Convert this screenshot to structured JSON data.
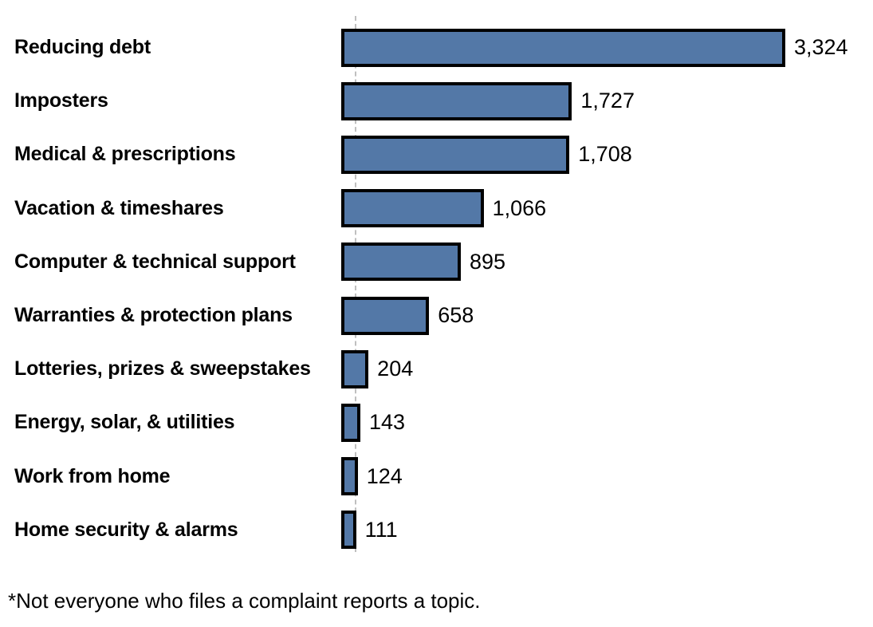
{
  "chart_data": {
    "type": "bar",
    "orientation": "horizontal",
    "title": "",
    "xlabel": "",
    "ylabel": "",
    "categories": [
      "Reducing debt",
      "Imposters",
      "Medical & prescriptions",
      "Vacation & timeshares",
      "Computer & technical support",
      "Warranties & protection plans",
      "Lotteries, prizes & sweepstakes",
      "Energy, solar, & utilities",
      "Work from home",
      "Home security & alarms"
    ],
    "values": [
      3324,
      1727,
      1708,
      1066,
      895,
      658,
      204,
      143,
      124,
      111
    ],
    "value_labels": [
      "3,324",
      "1,727",
      "1,708",
      "1,066",
      "895",
      "658",
      "204",
      "143",
      "124",
      "111"
    ],
    "xlim": [
      0,
      3324
    ],
    "grid": false,
    "legend": false,
    "footnote": "*Not everyone who files a complaint reports a topic.",
    "colors": {
      "bar_fill": "#5378a7",
      "bar_border": "#000000",
      "axis_dash": "#bfbfbf",
      "text": "#000000"
    }
  }
}
